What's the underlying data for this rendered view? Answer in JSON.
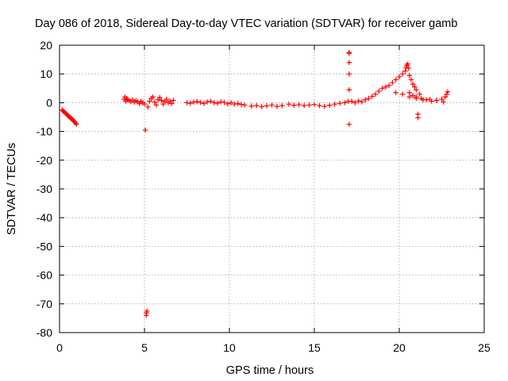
{
  "chart_data": {
    "type": "scatter",
    "title": "Day 086 of 2018, Sidereal Day-to-day VTEC variation (SDTVAR) for receiver gamb",
    "xlabel": "GPS time / hours",
    "ylabel": "SDTVAR / TECUs",
    "xlim": [
      0,
      25
    ],
    "ylim": [
      -80,
      20
    ],
    "xticks": [
      "0",
      "5",
      "10",
      "15",
      "20",
      "25"
    ],
    "yticks": [
      "20",
      "10",
      "0",
      "-10",
      "-20",
      "-30",
      "-40",
      "-50",
      "-60",
      "-70",
      "-80"
    ],
    "grid": true,
    "marker": "+",
    "color": "#ff0000",
    "series": [
      {
        "name": "SDTVAR",
        "x": [
          0.15,
          0.2,
          0.25,
          0.3,
          0.35,
          0.4,
          0.45,
          0.5,
          0.55,
          0.6,
          0.65,
          0.7,
          0.75,
          0.8,
          0.85,
          0.9,
          0.95,
          1.0,
          3.8,
          3.85,
          3.9,
          3.95,
          4.0,
          4.1,
          4.2,
          4.3,
          4.4,
          4.5,
          4.6,
          4.7,
          4.8,
          4.9,
          5.0,
          5.05,
          5.1,
          5.12,
          5.15,
          5.2,
          5.3,
          5.4,
          5.5,
          5.6,
          5.7,
          5.8,
          5.9,
          6.0,
          6.1,
          6.2,
          6.3,
          6.4,
          6.5,
          6.6,
          6.7,
          7.5,
          7.7,
          7.9,
          8.1,
          8.3,
          8.5,
          8.7,
          8.9,
          9.1,
          9.3,
          9.5,
          9.7,
          9.9,
          10.1,
          10.3,
          10.5,
          10.7,
          10.9,
          11.3,
          11.6,
          11.9,
          12.2,
          12.5,
          12.8,
          13.1,
          13.5,
          13.8,
          14.1,
          14.4,
          14.7,
          15.0,
          15.3,
          15.6,
          15.9,
          16.2,
          16.5,
          16.8,
          17.0,
          17.05,
          17.05,
          17.05,
          17.05,
          17.05,
          17.05,
          17.2,
          17.4,
          17.6,
          17.8,
          18.0,
          18.2,
          18.4,
          18.6,
          18.8,
          19.0,
          19.2,
          19.4,
          19.6,
          19.8,
          20.0,
          20.2,
          20.35,
          20.4,
          20.45,
          20.5,
          20.55,
          20.6,
          20.7,
          20.8,
          20.9,
          21.0,
          21.1,
          21.1,
          21.2,
          20.6,
          20.8,
          21.0,
          21.3,
          21.6,
          21.9,
          22.2,
          22.5,
          22.7,
          22.8,
          22.85,
          19.8,
          20.2,
          20.6,
          21.0,
          21.4,
          21.8,
          22.2,
          22.6
        ],
        "y": [
          -2.5,
          -2.8,
          -3.1,
          -3.3,
          -3.6,
          -3.9,
          -4.2,
          -4.5,
          -4.8,
          -5.0,
          -5.3,
          -5.6,
          -5.8,
          -6.1,
          -6.4,
          -6.8,
          -7.1,
          -7.5,
          1.2,
          2.0,
          0.5,
          1.5,
          1.0,
          0.8,
          0.4,
          1.0,
          0.2,
          0.7,
          0.3,
          -0.3,
          0.5,
          0.0,
          -0.5,
          -9.5,
          -74.0,
          -73.2,
          -72.5,
          -1.5,
          0.5,
          1.5,
          2.0,
          0.2,
          -0.8,
          1.0,
          1.8,
          0.8,
          -0.5,
          0.5,
          1.2,
          0.0,
          0.6,
          -0.3,
          0.8,
          0.0,
          -0.2,
          0.2,
          0.4,
          0.1,
          -0.3,
          0.3,
          0.5,
          0.0,
          -0.2,
          0.3,
          0.1,
          -0.4,
          0.0,
          -0.5,
          -0.3,
          -0.6,
          -0.8,
          -1.2,
          -1.0,
          -1.4,
          -1.1,
          -0.8,
          -1.3,
          -1.0,
          -0.5,
          -0.9,
          -0.7,
          -1.0,
          -0.8,
          -0.6,
          -1.0,
          -1.3,
          -0.9,
          -0.5,
          -0.2,
          0.0,
          0.5,
          -7.5,
          4.5,
          10.0,
          14.0,
          17.2,
          17.5,
          0.5,
          0.0,
          0.6,
          0.3,
          1.0,
          1.5,
          2.2,
          3.0,
          4.0,
          5.0,
          5.5,
          6.0,
          7.0,
          8.0,
          9.0,
          10.0,
          11.0,
          12.2,
          13.0,
          13.5,
          12.0,
          9.5,
          8.0,
          6.5,
          5.5,
          4.5,
          -4.0,
          -5.2,
          3.0,
          3.5,
          2.5,
          2.0,
          1.5,
          1.0,
          0.5,
          0.8,
          1.2,
          2.0,
          3.0,
          3.8,
          3.5,
          3.0,
          2.0,
          1.5,
          1.0,
          1.2,
          0.8,
          0.3
        ]
      }
    ]
  }
}
